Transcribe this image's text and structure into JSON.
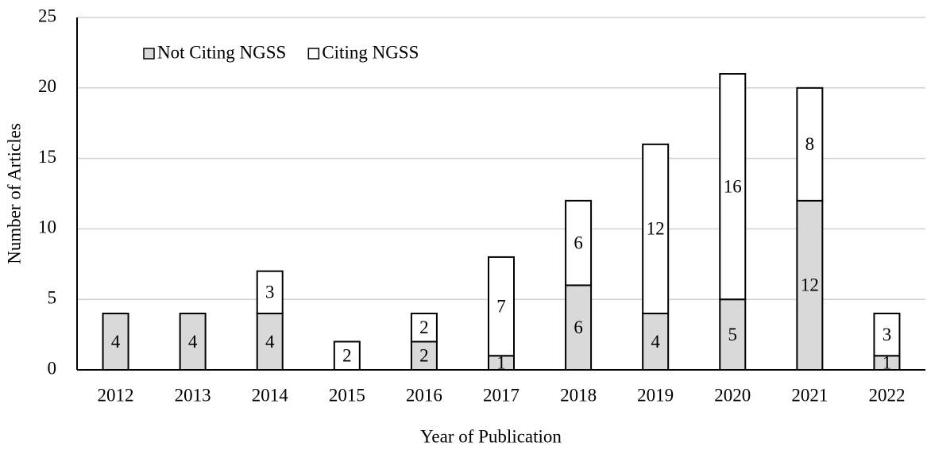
{
  "chart_data": {
    "type": "stacked_bar",
    "x_label": "Year of Publication",
    "y_label": "Number of Articles",
    "categories": [
      "2012",
      "2013",
      "2014",
      "2015",
      "2016",
      "2017",
      "2018",
      "2019",
      "2020",
      "2021",
      "2022"
    ],
    "series": [
      {
        "name": "Not Citing NGSS",
        "color": "#d9d9d9",
        "values": [
          4,
          4,
          4,
          0,
          2,
          1,
          6,
          4,
          5,
          12,
          1
        ]
      },
      {
        "name": "Citing NGSS",
        "color": "#ffffff",
        "values": [
          0,
          0,
          3,
          2,
          2,
          7,
          6,
          12,
          16,
          8,
          3
        ]
      }
    ],
    "ylim": [
      0,
      25
    ],
    "yticks": [
      0,
      5,
      10,
      15,
      20,
      25
    ],
    "grid": true,
    "legend": "top-left"
  }
}
